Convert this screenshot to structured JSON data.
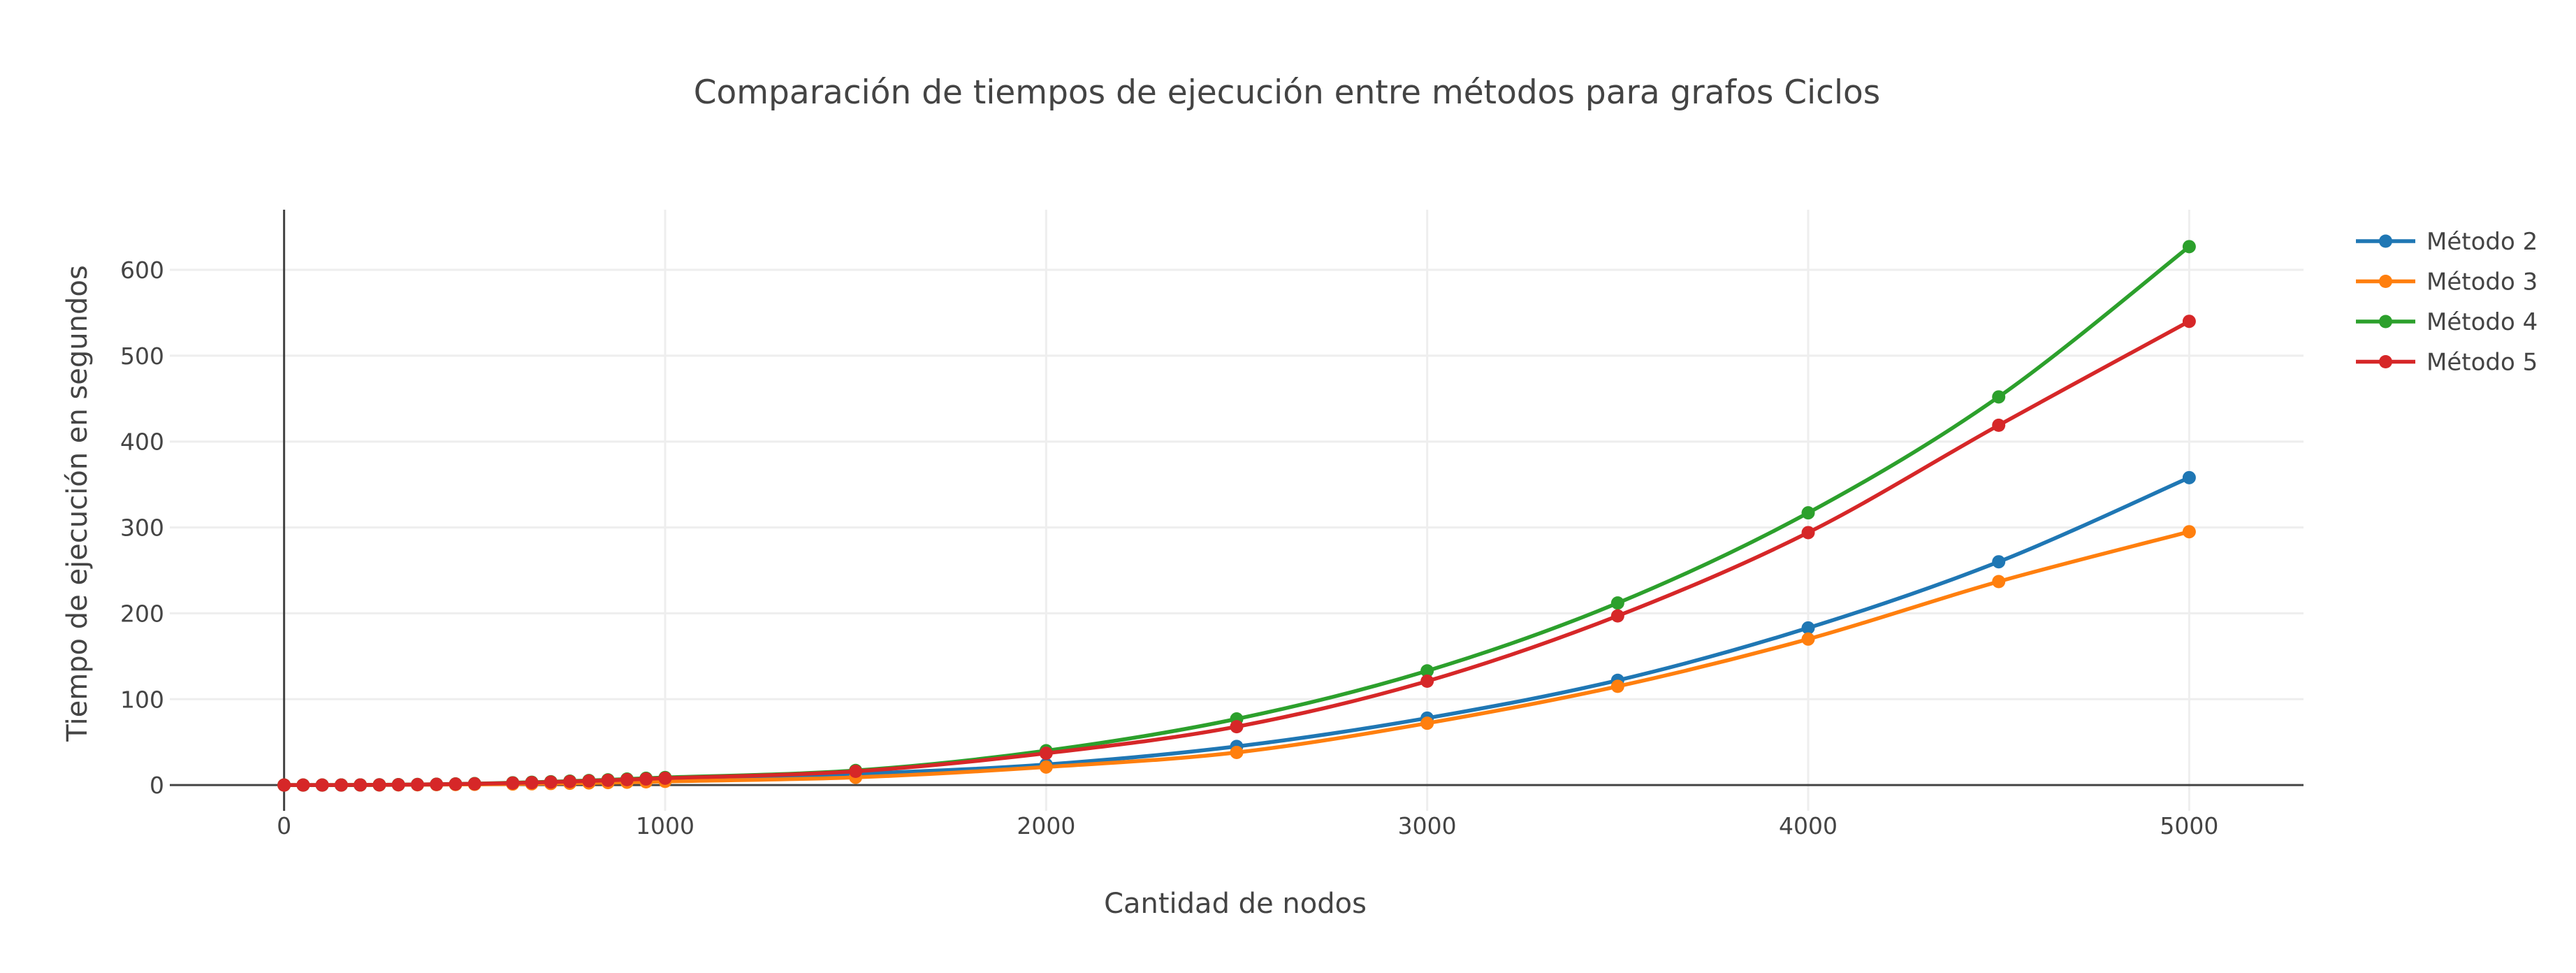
{
  "chart_data": {
    "type": "line",
    "title": "Comparación de tiempos de ejecución entre métodos para grafos Ciclos",
    "xlabel": "Cantidad de nodos",
    "ylabel": "Tiempo de ejecución en segundos",
    "xlim": [
      -300,
      5300
    ],
    "ylim": [
      -30,
      670
    ],
    "xticks": [
      0,
      1000,
      2000,
      3000,
      4000,
      5000
    ],
    "yticks": [
      0,
      100,
      200,
      300,
      400,
      500,
      600
    ],
    "grid": true,
    "legend_position": "top-right",
    "x": [
      0,
      50,
      100,
      150,
      200,
      250,
      300,
      350,
      400,
      450,
      500,
      600,
      650,
      700,
      750,
      800,
      850,
      900,
      950,
      1000,
      1500,
      2000,
      2500,
      3000,
      3500,
      4000,
      4500,
      5000
    ],
    "series": [
      {
        "name": "Método 2",
        "color": "#1f77b4",
        "values": [
          0,
          0.01,
          0.02,
          0.05,
          0.1,
          0.2,
          0.3,
          0.45,
          0.6,
          0.8,
          1.0,
          1.6,
          2.0,
          2.4,
          2.9,
          3.4,
          4.0,
          4.6,
          5.3,
          6.0,
          13,
          24,
          45,
          78,
          122,
          183,
          260,
          358
        ]
      },
      {
        "name": "Método 3",
        "color": "#ff7f0e",
        "values": [
          0,
          0.01,
          0.02,
          0.04,
          0.08,
          0.15,
          0.25,
          0.35,
          0.5,
          0.65,
          0.8,
          1.2,
          1.5,
          1.8,
          2.1,
          2.5,
          2.9,
          3.3,
          3.8,
          4.3,
          9,
          21,
          38,
          72,
          115,
          170,
          237,
          295
        ]
      },
      {
        "name": "Método 4",
        "color": "#2ca02c",
        "values": [
          0,
          0.01,
          0.03,
          0.07,
          0.15,
          0.3,
          0.5,
          0.7,
          1.0,
          1.3,
          1.7,
          2.7,
          3.3,
          3.9,
          4.6,
          5.3,
          6.1,
          7.0,
          7.9,
          8.8,
          17,
          40,
          77,
          133,
          212,
          317,
          452,
          627
        ]
      },
      {
        "name": "Método 5",
        "color": "#d62728",
        "values": [
          0,
          0.01,
          0.03,
          0.06,
          0.13,
          0.25,
          0.4,
          0.6,
          0.9,
          1.2,
          1.5,
          2.4,
          2.9,
          3.5,
          4.1,
          4.8,
          5.5,
          6.3,
          7.1,
          8.0,
          16,
          37,
          68,
          121,
          197,
          294,
          419,
          540
        ]
      }
    ]
  }
}
